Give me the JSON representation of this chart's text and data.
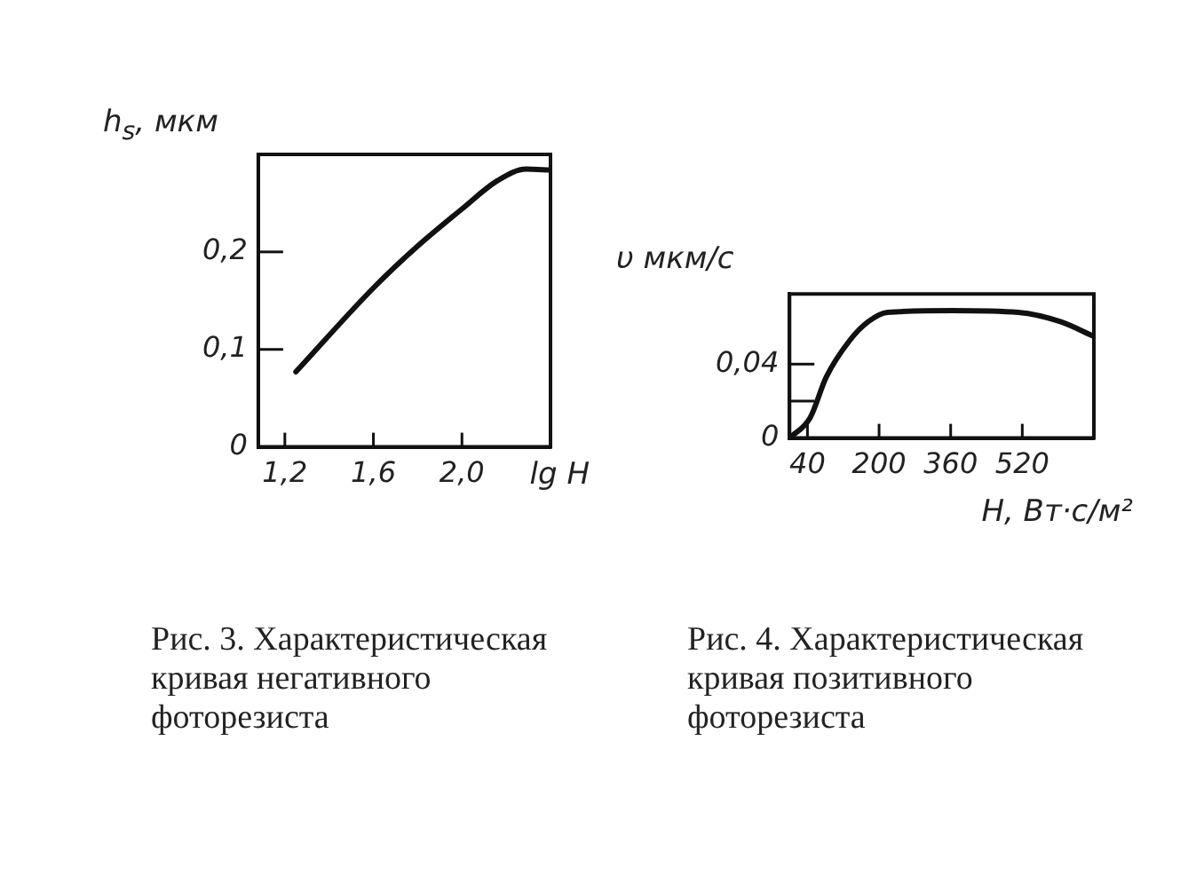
{
  "chart_data": [
    {
      "type": "line",
      "ylabel": "h$_{s}$, мкм",
      "xlabel": "lg H",
      "x": [
        1.25,
        1.6,
        1.8,
        2.0,
        2.16,
        2.29,
        2.4
      ],
      "series": [
        {
          "color": "#111111",
          "values": [
            0.077,
            0.163,
            0.206,
            0.244,
            0.273,
            0.285,
            0.284
          ]
        }
      ],
      "xlim": [
        1.08,
        2.4
      ],
      "xticks": [
        {
          "value": 1.2,
          "label": "1,2"
        },
        {
          "value": 1.6,
          "label": "1,6"
        },
        {
          "value": 2.0,
          "label": "2,0"
        }
      ],
      "ylim": [
        0,
        0.3
      ],
      "yticks": [
        0,
        {
          "value": 0.1,
          "label": "0,1"
        },
        {
          "value": 0.2,
          "label": "0,2"
        }
      ],
      "grid": false,
      "legend": false,
      "marker": "none",
      "annotations": [
        "Рис. 3. Характеристическая кривая негативного фоторезиста"
      ]
    },
    {
      "type": "line",
      "ylabel": "υ мкм/с",
      "xlabel": "H, Вт·с/м²",
      "x": [
        0,
        46,
        82,
        135,
        176,
        219,
        364,
        511,
        605,
        680
      ],
      "series": [
        {
          "color": "#111111",
          "values": [
            0,
            0.011,
            0.033,
            0.053,
            0.063,
            0.068,
            0.069,
            0.068,
            0.063,
            0.055
          ]
        }
      ],
      "xlim": [
        0,
        680
      ],
      "xticks": [
        40,
        200,
        360,
        520
      ],
      "ylim": [
        0,
        0.078
      ],
      "yticks": [
        0,
        {
          "value": 0.02,
          "label": null
        },
        {
          "value": 0.04,
          "label": "0,04"
        }
      ],
      "grid": false,
      "legend": false,
      "marker": "none",
      "annotations": [
        "Рис. 4. Характеристическая кривая позитивного фоторезиста"
      ]
    }
  ]
}
